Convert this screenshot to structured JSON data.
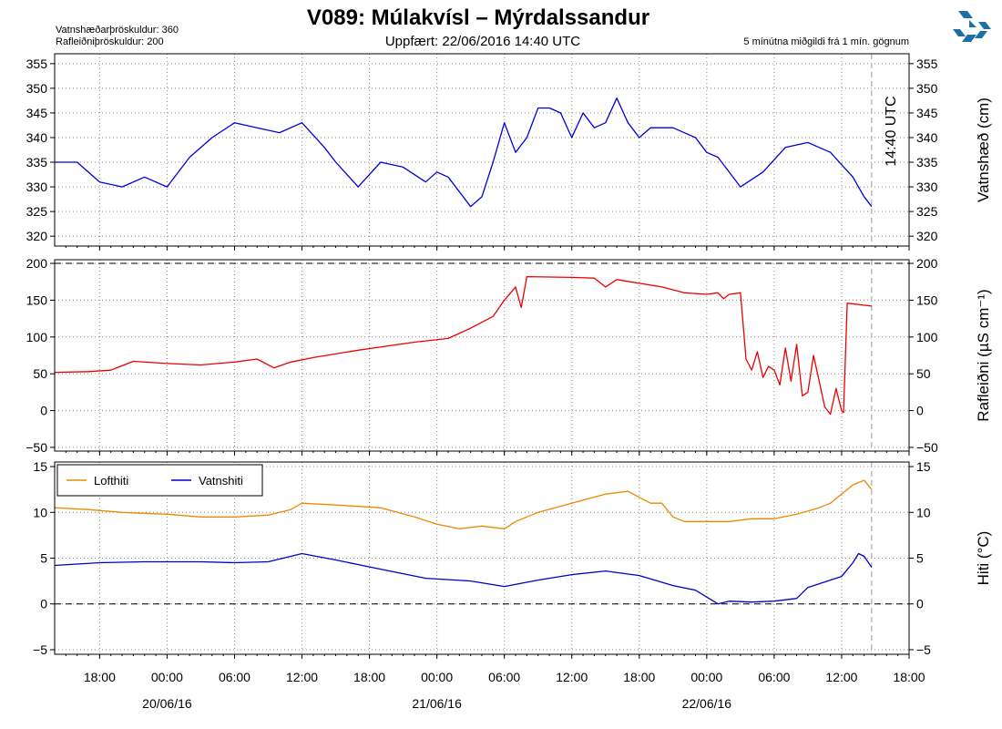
{
  "header": {
    "title": "V089: Múlakvísl – Mýrdalssandur",
    "updated": "Uppfært: 22/06/2016 14:40 UTC",
    "threshold_water": "Vatnshæðarþröskuldur: 360",
    "threshold_cond": "Rafleiðniþröskuldur: 200",
    "note": "5 mínútna miðgildi frá 1 mín. gögnum"
  },
  "colors": {
    "water_level": "#0000dd",
    "conductivity": "#ee0000",
    "air_temp": "#ee8800",
    "water_temp": "#0000cc",
    "now_line": "#aaaaaa",
    "logo": "#1f6fa6"
  },
  "icons": {
    "logo": "vedur-logo-icon"
  },
  "chart_data": [
    {
      "type": "line",
      "ylabel": "Vatnshæð (cm)",
      "ylim": [
        318,
        357
      ],
      "yticks": [
        320,
        325,
        330,
        335,
        340,
        345,
        350,
        355
      ],
      "grid": "horizontal dotted",
      "now_label": "14:40 UTC",
      "series": [
        {
          "color": "#0000dd",
          "x": [
            "2016-06-19T14:00",
            "2016-06-19T16:00",
            "2016-06-19T18:00",
            "2016-06-19T20:00",
            "2016-06-19T22:00",
            "2016-06-20T00:00",
            "2016-06-20T02:00",
            "2016-06-20T04:00",
            "2016-06-20T06:00",
            "2016-06-20T08:00",
            "2016-06-20T10:00",
            "2016-06-20T12:00",
            "2016-06-20T14:00",
            "2016-06-20T15:00",
            "2016-06-20T17:00",
            "2016-06-20T19:00",
            "2016-06-20T21:00",
            "2016-06-20T23:00",
            "2016-06-21T00:00",
            "2016-06-21T01:00",
            "2016-06-21T03:00",
            "2016-06-21T04:00",
            "2016-06-21T05:00",
            "2016-06-21T06:00",
            "2016-06-21T07:00",
            "2016-06-21T08:00",
            "2016-06-21T09:00",
            "2016-06-21T10:00",
            "2016-06-21T11:00",
            "2016-06-21T12:00",
            "2016-06-21T13:00",
            "2016-06-21T14:00",
            "2016-06-21T15:00",
            "2016-06-21T16:00",
            "2016-06-21T17:00",
            "2016-06-21T18:00",
            "2016-06-21T19:00",
            "2016-06-21T21:00",
            "2016-06-21T23:00",
            "2016-06-22T00:00",
            "2016-06-22T01:00",
            "2016-06-22T03:00",
            "2016-06-22T05:00",
            "2016-06-22T07:00",
            "2016-06-22T09:00",
            "2016-06-22T11:00",
            "2016-06-22T13:00",
            "2016-06-22T14:00",
            "2016-06-22T14:40"
          ],
          "values": [
            335,
            335,
            331,
            330,
            332,
            330,
            336,
            340,
            343,
            342,
            341,
            343,
            338,
            335,
            330,
            335,
            334,
            331,
            333,
            332,
            326,
            328,
            335,
            343,
            337,
            340,
            346,
            346,
            345,
            340,
            345,
            342,
            343,
            348,
            343,
            340,
            342,
            342,
            340,
            337,
            336,
            330,
            333,
            338,
            339,
            337,
            332,
            328,
            326
          ]
        }
      ]
    },
    {
      "type": "line",
      "ylabel": "Rafleiðni (µS cm⁻¹)",
      "ylim": [
        -55,
        205
      ],
      "yticks": [
        -50,
        0,
        50,
        100,
        150,
        200
      ],
      "threshold": 200,
      "grid": "horizontal dotted",
      "series": [
        {
          "color": "#ee0000",
          "x": [
            "2016-06-19T14:00",
            "2016-06-19T17:00",
            "2016-06-19T19:00",
            "2016-06-19T21:00",
            "2016-06-20T00:00",
            "2016-06-20T03:00",
            "2016-06-20T06:00",
            "2016-06-20T08:00",
            "2016-06-20T09:30",
            "2016-06-20T11:00",
            "2016-06-20T13:00",
            "2016-06-20T17:00",
            "2016-06-20T22:00",
            "2016-06-21T01:00",
            "2016-06-21T03:00",
            "2016-06-21T05:00",
            "2016-06-21T06:00",
            "2016-06-21T07:00",
            "2016-06-21T07:30",
            "2016-06-21T08:00",
            "2016-06-21T12:00",
            "2016-06-21T14:00",
            "2016-06-21T15:00",
            "2016-06-21T16:00",
            "2016-06-21T20:00",
            "2016-06-21T22:00",
            "2016-06-22T00:00",
            "2016-06-22T01:00",
            "2016-06-22T01:30",
            "2016-06-22T02:00",
            "2016-06-22T03:00",
            "2016-06-22T03:30",
            "2016-06-22T04:00",
            "2016-06-22T04:30",
            "2016-06-22T05:00",
            "2016-06-22T05:30",
            "2016-06-22T06:00",
            "2016-06-22T06:30",
            "2016-06-22T07:00",
            "2016-06-22T07:30",
            "2016-06-22T08:00",
            "2016-06-22T08:30",
            "2016-06-22T09:00",
            "2016-06-22T09:30",
            "2016-06-22T10:00",
            "2016-06-22T10:30",
            "2016-06-22T11:00",
            "2016-06-22T11:30",
            "2016-06-22T12:00",
            "2016-06-22T12:10",
            "2016-06-22T12:30",
            "2016-06-22T14:40"
          ],
          "values": [
            52,
            53,
            55,
            67,
            64,
            62,
            66,
            70,
            58,
            66,
            72,
            82,
            93,
            98,
            112,
            128,
            150,
            168,
            140,
            182,
            181,
            180,
            168,
            178,
            168,
            160,
            158,
            160,
            152,
            158,
            160,
            70,
            55,
            80,
            45,
            60,
            55,
            35,
            85,
            40,
            90,
            20,
            25,
            75,
            40,
            5,
            -5,
            30,
            0,
            -3,
            146,
            142
          ]
        }
      ]
    },
    {
      "type": "line",
      "ylabel": "Hiti (°C)",
      "ylim": [
        -5.5,
        15.5
      ],
      "yticks": [
        -5,
        0,
        5,
        10,
        15
      ],
      "zero_line": true,
      "grid": "horizontal dotted",
      "legend_position": "top-left",
      "series": [
        {
          "name": "Lofthiti",
          "color": "#ee8800",
          "x": [
            "2016-06-19T14:00",
            "2016-06-19T17:00",
            "2016-06-19T20:00",
            "2016-06-20T00:00",
            "2016-06-20T03:00",
            "2016-06-20T06:00",
            "2016-06-20T09:00",
            "2016-06-20T11:00",
            "2016-06-20T12:00",
            "2016-06-20T15:00",
            "2016-06-20T19:00",
            "2016-06-20T22:00",
            "2016-06-21T00:00",
            "2016-06-21T02:00",
            "2016-06-21T04:00",
            "2016-06-21T06:00",
            "2016-06-21T07:00",
            "2016-06-21T09:00",
            "2016-06-21T12:00",
            "2016-06-21T15:00",
            "2016-06-21T17:00",
            "2016-06-21T19:00",
            "2016-06-21T20:00",
            "2016-06-21T21:00",
            "2016-06-21T22:00",
            "2016-06-22T00:00",
            "2016-06-22T02:00",
            "2016-06-22T04:00",
            "2016-06-22T06:00",
            "2016-06-22T08:00",
            "2016-06-22T10:00",
            "2016-06-22T11:00",
            "2016-06-22T12:00",
            "2016-06-22T13:00",
            "2016-06-22T14:00",
            "2016-06-22T14:40"
          ],
          "values": [
            10.5,
            10.3,
            10.0,
            9.8,
            9.5,
            9.5,
            9.7,
            10.3,
            11.0,
            10.8,
            10.5,
            9.5,
            8.7,
            8.2,
            8.5,
            8.2,
            9.0,
            10.0,
            11.0,
            12.0,
            12.3,
            11.0,
            11.0,
            9.5,
            9.0,
            9.0,
            9.0,
            9.3,
            9.3,
            9.8,
            10.5,
            11.0,
            12.0,
            13.0,
            13.5,
            12.5
          ]
        },
        {
          "name": "Vatnshiti",
          "color": "#0000cc",
          "x": [
            "2016-06-19T14:00",
            "2016-06-19T18:00",
            "2016-06-19T22:00",
            "2016-06-20T03:00",
            "2016-06-20T06:00",
            "2016-06-20T09:00",
            "2016-06-20T12:00",
            "2016-06-20T15:00",
            "2016-06-20T19:00",
            "2016-06-20T23:00",
            "2016-06-21T03:00",
            "2016-06-21T06:00",
            "2016-06-21T09:00",
            "2016-06-21T12:00",
            "2016-06-21T15:00",
            "2016-06-21T18:00",
            "2016-06-21T21:00",
            "2016-06-21T23:00",
            "2016-06-22T01:00",
            "2016-06-22T02:00",
            "2016-06-22T04:00",
            "2016-06-22T06:00",
            "2016-06-22T08:00",
            "2016-06-22T09:00",
            "2016-06-22T10:00",
            "2016-06-22T12:00",
            "2016-06-22T13:00",
            "2016-06-22T13:30",
            "2016-06-22T14:00",
            "2016-06-22T14:40"
          ],
          "values": [
            4.2,
            4.5,
            4.6,
            4.6,
            4.5,
            4.6,
            5.5,
            4.8,
            3.8,
            2.8,
            2.5,
            1.9,
            2.6,
            3.2,
            3.6,
            3.1,
            2.0,
            1.5,
            0.0,
            0.3,
            0.2,
            0.3,
            0.6,
            1.8,
            2.2,
            3.0,
            4.5,
            5.5,
            5.2,
            4.0
          ]
        }
      ]
    }
  ],
  "x_axis": {
    "start": "2016-06-19T14:00",
    "end": "2016-06-22T18:00",
    "now": "2016-06-22T14:40",
    "ticks": [
      {
        "t": "2016-06-19T18:00",
        "label": "18:00"
      },
      {
        "t": "2016-06-20T00:00",
        "label": "00:00"
      },
      {
        "t": "2016-06-20T06:00",
        "label": "06:00"
      },
      {
        "t": "2016-06-20T12:00",
        "label": "12:00"
      },
      {
        "t": "2016-06-20T18:00",
        "label": "18:00"
      },
      {
        "t": "2016-06-21T00:00",
        "label": "00:00"
      },
      {
        "t": "2016-06-21T06:00",
        "label": "06:00"
      },
      {
        "t": "2016-06-21T12:00",
        "label": "12:00"
      },
      {
        "t": "2016-06-21T18:00",
        "label": "18:00"
      },
      {
        "t": "2016-06-22T00:00",
        "label": "00:00"
      },
      {
        "t": "2016-06-22T06:00",
        "label": "06:00"
      },
      {
        "t": "2016-06-22T12:00",
        "label": "12:00"
      },
      {
        "t": "2016-06-22T18:00",
        "label": "18:00"
      }
    ],
    "dates": [
      {
        "t": "2016-06-20T00:00",
        "label": "20/06/16"
      },
      {
        "t": "2016-06-21T00:00",
        "label": "21/06/16"
      },
      {
        "t": "2016-06-22T00:00",
        "label": "22/06/16"
      }
    ]
  }
}
